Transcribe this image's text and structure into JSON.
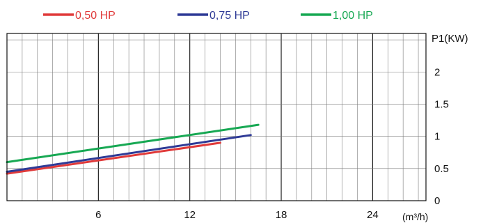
{
  "chart_data": {
    "type": "line",
    "title": "",
    "xlabel": "(m³/h)",
    "ylabel": "P1(KW)",
    "xlim": [
      0,
      27.5
    ],
    "ylim": [
      0,
      2.6
    ],
    "x_ticks": [
      6,
      12,
      18,
      24
    ],
    "x_tick_labels": [
      "6",
      "12",
      "18",
      "24"
    ],
    "y_ticks": [
      0,
      0.5,
      1,
      1.5,
      2
    ],
    "y_tick_labels": [
      "0",
      "0.5",
      "1",
      "1.5",
      "2"
    ],
    "grid": true,
    "grid_minor_step_x": 1,
    "grid_major_step_x": 6,
    "grid_step_y": 0.5,
    "legend_position": "top",
    "series": [
      {
        "name": "0,50 HP",
        "color": "#e03a3a",
        "x": [
          0,
          14
        ],
        "y": [
          0.42,
          0.9
        ]
      },
      {
        "name": "0,75 HP",
        "color": "#2e3a96",
        "x": [
          0,
          16
        ],
        "y": [
          0.45,
          1.02
        ]
      },
      {
        "name": "1,00 HP",
        "color": "#17a853",
        "x": [
          0,
          16.5
        ],
        "y": [
          0.6,
          1.18
        ]
      }
    ]
  }
}
